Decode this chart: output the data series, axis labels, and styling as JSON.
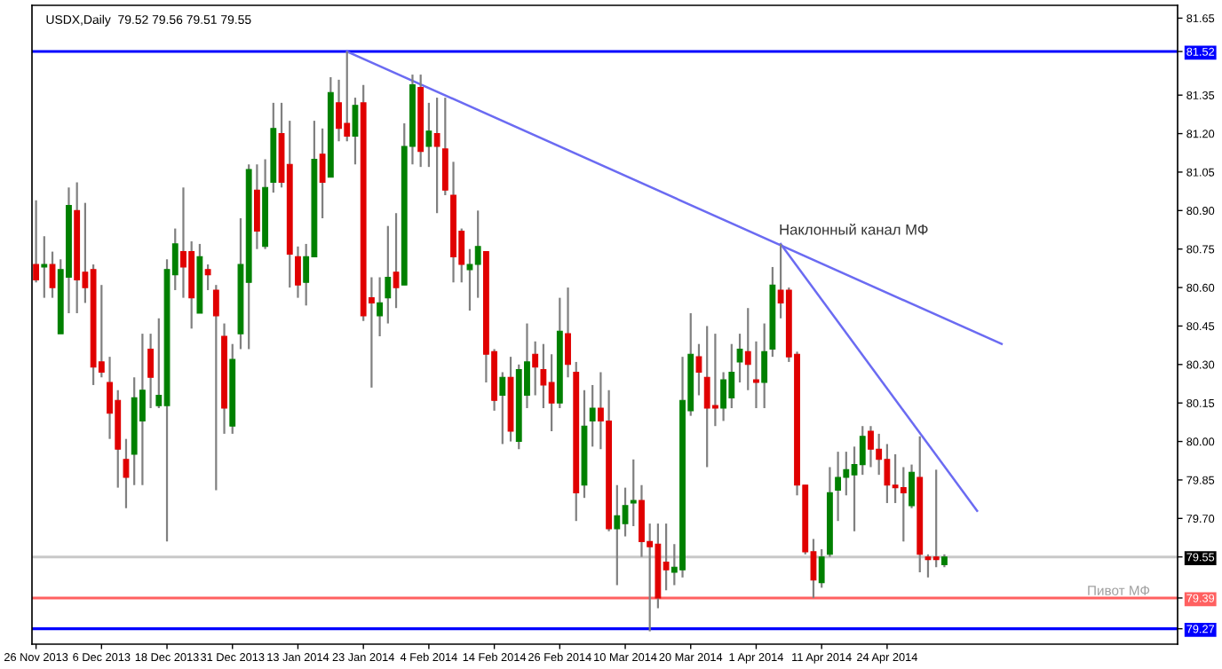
{
  "chart_data": {
    "type": "candlestick",
    "title": "USDX,Daily  79.52 79.56 79.51 79.55",
    "annotations": [
      "Наклонный канал МФ"
    ],
    "categories": [
      "26 Nov 2013",
      null,
      null,
      null,
      null,
      null,
      null,
      null,
      "6 Dec 2013",
      null,
      null,
      null,
      null,
      null,
      null,
      null,
      "18 Dec 2013",
      null,
      null,
      null,
      null,
      null,
      null,
      null,
      "31 Dec 2013",
      null,
      null,
      null,
      null,
      null,
      null,
      null,
      "13 Jan 2014",
      null,
      null,
      null,
      null,
      null,
      null,
      null,
      "23 Jan 2014",
      null,
      null,
      null,
      null,
      null,
      null,
      null,
      "4 Feb 2014",
      null,
      null,
      null,
      null,
      null,
      null,
      null,
      "14 Feb 2014",
      null,
      null,
      null,
      null,
      null,
      null,
      null,
      "26 Feb 2014",
      null,
      null,
      null,
      null,
      null,
      null,
      null,
      "10 Mar 2014",
      null,
      null,
      null,
      null,
      null,
      null,
      null,
      "20 Mar 2014",
      null,
      null,
      null,
      null,
      null,
      null,
      null,
      "1 Apr 2014",
      null,
      null,
      null,
      null,
      null,
      null,
      null,
      "11 Apr 2014",
      null,
      null,
      null,
      null,
      null,
      null,
      null,
      "24 Apr 2014",
      null,
      null,
      null,
      null,
      null,
      null,
      null,
      null,
      null,
      null,
      null,
      null,
      null,
      null,
      null,
      null,
      null,
      null,
      null,
      null,
      null,
      null,
      null,
      null,
      null,
      null,
      null,
      null,
      null,
      null,
      null,
      null,
      null,
      null,
      null
    ],
    "colors": [
      "#e00000",
      "#008000",
      "#e00000",
      "#008000",
      "#008000",
      "#e00000",
      "#e00000",
      "#e00000",
      "#e00000",
      "#e00000",
      "#e00000",
      "#e00000",
      "#008000",
      "#008000",
      "#e00000",
      "#008000",
      "#008000",
      "#008000",
      "#e00000",
      "#e00000",
      "#008000",
      "#e00000",
      "#e00000",
      "#e00000",
      "#008000",
      "#008000",
      "#008000",
      "#e00000",
      "#008000",
      "#008000",
      "#e00000",
      "#e00000",
      "#e00000",
      "#008000",
      "#008000",
      "#e00000",
      "#008000",
      "#e00000",
      "#e00000",
      "#008000",
      "#e00000",
      "#e00000",
      "#008000",
      "#008000",
      "#e00000",
      "#008000",
      "#008000",
      "#e00000",
      "#008000",
      "#e00000",
      "#e00000",
      "#e00000",
      "#e00000",
      "#008000",
      "#008000",
      "#e00000",
      "#e00000",
      "#008000",
      "#e00000",
      "#008000",
      "#008000",
      "#e00000",
      "#e00000",
      "#e00000",
      "#008000",
      "#e00000",
      "#e00000",
      "#008000",
      "#008000",
      "#e00000",
      "#e00000",
      "#008000",
      "#008000",
      "#008000",
      "#e00000",
      "#e00000",
      "#e00000",
      "#e00000",
      "#008000",
      "#008000",
      "#008000",
      "#e00000",
      "#e00000",
      "#e00000",
      "#008000",
      "#008000",
      "#008000",
      "#e00000",
      "#e00000",
      "#008000",
      "#008000",
      "#e00000",
      "#e00000",
      "#e00000",
      "#e00000",
      "#e00000",
      "#008000",
      "#008000",
      "#008000",
      "#008000",
      "#008000",
      "#008000",
      "#e00000",
      "#e00000",
      "#e00000",
      "#e00000",
      "#e00000",
      "#008000",
      "#e00000",
      "#e00000",
      "#e00000",
      "#008000",
      null,
      null,
      null,
      null,
      null,
      null,
      null,
      null,
      null,
      null,
      null,
      null,
      null,
      null,
      null,
      null,
      null,
      null,
      null,
      null,
      null,
      null,
      null,
      null,
      null,
      null,
      null,
      null
    ],
    "ohlc": [
      [
        80.69,
        80.94,
        80.62,
        80.63
      ],
      [
        80.68,
        80.8,
        80.56,
        80.69
      ],
      [
        80.69,
        80.74,
        80.56,
        80.6
      ],
      [
        80.42,
        80.71,
        80.42,
        80.67
      ],
      [
        80.64,
        80.99,
        80.5,
        80.92
      ],
      [
        80.9,
        81.01,
        80.5,
        80.63
      ],
      [
        80.66,
        80.93,
        80.54,
        80.6
      ],
      [
        80.67,
        80.69,
        80.22,
        80.29
      ],
      [
        80.31,
        80.61,
        80.25,
        80.27
      ],
      [
        80.23,
        80.33,
        80.01,
        80.11
      ],
      [
        80.16,
        80.2,
        79.82,
        79.97
      ],
      [
        79.93,
        80.01,
        79.74,
        79.86
      ],
      [
        79.95,
        80.25,
        79.83,
        80.17
      ],
      [
        80.08,
        80.42,
        79.83,
        80.2
      ],
      [
        80.36,
        80.42,
        80.13,
        80.25
      ],
      [
        80.14,
        80.48,
        80.13,
        80.18
      ],
      [
        80.14,
        80.71,
        79.61,
        80.67
      ],
      [
        80.65,
        80.83,
        80.59,
        80.77
      ],
      [
        80.74,
        80.99,
        80.56,
        80.68
      ],
      [
        80.74,
        80.78,
        80.44,
        80.56
      ],
      [
        80.5,
        80.77,
        80.5,
        80.72
      ],
      [
        80.67,
        80.69,
        80.59,
        80.65
      ],
      [
        80.59,
        80.61,
        79.81,
        80.49
      ],
      [
        80.41,
        80.46,
        80.03,
        80.13
      ],
      [
        80.06,
        80.38,
        80.03,
        80.32
      ],
      [
        80.42,
        80.87,
        80.36,
        80.69
      ],
      [
        80.62,
        81.08,
        80.36,
        81.06
      ],
      [
        80.98,
        81.08,
        80.75,
        80.82
      ],
      [
        80.76,
        81.1,
        80.75,
        80.99
      ],
      [
        81.01,
        81.32,
        80.97,
        81.22
      ],
      [
        81.2,
        81.32,
        80.99,
        81.01
      ],
      [
        81.08,
        81.25,
        80.6,
        80.73
      ],
      [
        80.72,
        80.76,
        80.56,
        80.61
      ],
      [
        80.62,
        80.77,
        80.53,
        80.72
      ],
      [
        80.72,
        81.25,
        80.72,
        81.1
      ],
      [
        81.12,
        81.22,
        80.87,
        81.01
      ],
      [
        81.03,
        81.42,
        81.03,
        81.36
      ],
      [
        81.32,
        81.41,
        81.17,
        81.22
      ],
      [
        81.24,
        81.52,
        81.17,
        81.19
      ],
      [
        81.19,
        81.34,
        81.08,
        81.31
      ],
      [
        81.32,
        81.39,
        80.47,
        80.49
      ],
      [
        80.56,
        80.64,
        80.21,
        80.54
      ],
      [
        80.49,
        80.64,
        80.41,
        80.54
      ],
      [
        80.56,
        80.84,
        80.46,
        80.64
      ],
      [
        80.66,
        80.89,
        80.52,
        80.6
      ],
      [
        80.61,
        81.24,
        80.61,
        81.15
      ],
      [
        81.15,
        81.43,
        81.08,
        81.39
      ],
      [
        81.38,
        81.43,
        81.07,
        81.13
      ],
      [
        81.15,
        81.32,
        81.07,
        81.21
      ],
      [
        81.2,
        81.34,
        80.89,
        81.15
      ],
      [
        81.14,
        81.34,
        80.96,
        80.98
      ],
      [
        80.96,
        81.09,
        80.62,
        80.72
      ],
      [
        80.82,
        80.83,
        80.62,
        80.69
      ],
      [
        80.67,
        80.75,
        80.51,
        80.69
      ],
      [
        80.69,
        80.9,
        80.56,
        80.76
      ],
      [
        80.74,
        80.74,
        80.23,
        80.34
      ],
      [
        80.35,
        80.36,
        80.12,
        80.16
      ],
      [
        80.18,
        80.27,
        79.99,
        80.25
      ],
      [
        80.25,
        80.33,
        80.0,
        80.04
      ],
      [
        80.0,
        80.3,
        79.97,
        80.28
      ],
      [
        80.18,
        80.46,
        80.13,
        80.31
      ],
      [
        80.34,
        80.39,
        80.18,
        80.29
      ],
      [
        80.28,
        80.38,
        80.13,
        80.22
      ],
      [
        80.23,
        80.34,
        80.04,
        80.15
      ],
      [
        80.15,
        80.56,
        80.13,
        80.43
      ],
      [
        80.42,
        80.6,
        80.25,
        80.3
      ],
      [
        80.27,
        80.31,
        79.69,
        79.8
      ],
      [
        79.83,
        80.2,
        79.78,
        80.06
      ],
      [
        80.08,
        80.22,
        79.98,
        80.13
      ],
      [
        80.13,
        80.27,
        79.97,
        80.08
      ],
      [
        80.08,
        80.2,
        79.65,
        79.66
      ],
      [
        79.66,
        79.83,
        79.44,
        79.71
      ],
      [
        79.68,
        79.82,
        79.63,
        79.75
      ],
      [
        79.76,
        79.93,
        79.67,
        79.77
      ],
      [
        79.77,
        79.83,
        79.55,
        79.61
      ],
      [
        79.61,
        79.68,
        79.26,
        79.59
      ],
      [
        79.6,
        79.68,
        79.35,
        79.39
      ],
      [
        79.53,
        79.68,
        79.42,
        79.5
      ],
      [
        79.49,
        79.6,
        79.44,
        79.51
      ],
      [
        79.5,
        80.33,
        79.47,
        80.16
      ],
      [
        80.12,
        80.5,
        80.1,
        80.34
      ],
      [
        80.33,
        80.38,
        80.18,
        80.27
      ],
      [
        80.25,
        80.45,
        79.9,
        80.13
      ],
      [
        80.14,
        80.42,
        80.06,
        80.13
      ],
      [
        80.13,
        80.27,
        80.08,
        80.24
      ],
      [
        80.17,
        80.38,
        80.13,
        80.27
      ],
      [
        80.31,
        80.42,
        80.23,
        80.36
      ],
      [
        80.35,
        80.52,
        80.2,
        80.3
      ],
      [
        80.24,
        80.39,
        80.13,
        80.23
      ],
      [
        80.23,
        80.46,
        80.13,
        80.35
      ],
      [
        80.36,
        80.68,
        80.33,
        80.61
      ],
      [
        80.59,
        80.77,
        80.48,
        80.54
      ],
      [
        80.59,
        80.6,
        80.31,
        80.33
      ],
      [
        80.34,
        80.35,
        79.79,
        79.83
      ],
      [
        79.83,
        79.83,
        79.56,
        79.57
      ],
      [
        79.57,
        79.62,
        79.39,
        79.46
      ],
      [
        79.45,
        79.58,
        79.43,
        79.55
      ],
      [
        79.56,
        79.9,
        79.55,
        79.8
      ],
      [
        79.81,
        79.96,
        79.69,
        79.86
      ],
      [
        79.86,
        79.96,
        79.79,
        79.89
      ],
      [
        79.87,
        79.98,
        79.65,
        79.91
      ],
      [
        79.91,
        80.06,
        79.87,
        80.02
      ],
      [
        80.04,
        80.06,
        79.9,
        79.97
      ],
      [
        79.97,
        80.03,
        79.87,
        79.93
      ],
      [
        79.93,
        79.99,
        79.76,
        79.83
      ],
      [
        79.83,
        79.95,
        79.76,
        79.82
      ],
      [
        79.82,
        79.9,
        79.61,
        79.8
      ],
      [
        79.75,
        79.91,
        79.74,
        79.88
      ],
      [
        79.86,
        80.02,
        79.49,
        79.56
      ],
      [
        79.55,
        79.56,
        79.47,
        79.54
      ],
      [
        79.55,
        79.89,
        79.51,
        79.54
      ],
      [
        79.52,
        79.56,
        79.51,
        79.55
      ],
      null,
      null,
      null,
      null,
      null,
      null,
      null,
      null,
      null,
      null,
      null,
      null,
      null,
      null,
      null,
      null,
      null,
      null,
      null,
      null,
      null,
      null,
      null,
      null,
      null,
      null,
      null,
      null
    ],
    "series": [
      {
        "type": "line",
        "color": "#6b6bf2",
        "values": [
          null,
          null,
          null,
          null,
          null,
          null,
          null,
          null,
          null,
          null,
          null,
          null,
          null,
          null,
          null,
          null,
          null,
          null,
          null,
          null,
          null,
          null,
          null,
          null,
          null,
          null,
          null,
          null,
          null,
          null,
          null,
          null,
          null,
          null,
          null,
          null,
          null,
          null,
          81.52,
          null,
          null,
          null,
          null,
          null,
          null,
          null,
          null,
          null,
          null,
          null,
          null,
          null,
          null,
          null,
          null,
          null,
          null,
          null,
          null,
          null,
          null,
          null,
          null,
          null,
          null,
          null,
          null,
          null,
          null,
          null,
          null,
          null,
          null,
          null,
          null,
          null,
          null,
          null,
          null,
          null,
          null,
          null,
          null,
          null,
          null,
          null,
          null,
          null,
          null,
          null,
          null,
          null,
          null,
          null,
          null,
          null,
          null,
          null,
          null,
          null,
          null,
          null,
          null,
          null,
          null,
          null,
          null,
          null,
          null,
          null,
          null,
          null,
          null,
          null,
          null,
          null,
          null,
          null,
          80.38,
          null,
          null,
          null,
          null,
          null,
          null,
          null,
          null,
          null,
          null,
          null,
          null,
          null,
          null,
          null,
          null,
          null,
          null,
          null,
          null,
          null
        ]
      },
      {
        "type": "line",
        "color": "#6b6bf2",
        "values": [
          null,
          null,
          null,
          null,
          null,
          null,
          null,
          null,
          null,
          null,
          null,
          null,
          null,
          null,
          null,
          null,
          null,
          null,
          null,
          null,
          null,
          null,
          null,
          null,
          null,
          null,
          null,
          null,
          null,
          null,
          null,
          null,
          null,
          null,
          null,
          null,
          null,
          null,
          null,
          null,
          null,
          null,
          null,
          null,
          null,
          null,
          null,
          null,
          null,
          null,
          null,
          null,
          null,
          null,
          null,
          null,
          null,
          null,
          null,
          null,
          null,
          null,
          null,
          null,
          null,
          null,
          null,
          null,
          null,
          null,
          null,
          null,
          null,
          null,
          null,
          null,
          null,
          null,
          null,
          null,
          null,
          null,
          null,
          null,
          null,
          null,
          null,
          null,
          null,
          null,
          null,
          80.77,
          null,
          null,
          null,
          null,
          null,
          null,
          null,
          null,
          null,
          null,
          null,
          null,
          null,
          null,
          null,
          null,
          null,
          null,
          null,
          null,
          null,
          null,
          null,
          79.73,
          null,
          null,
          null,
          null,
          null,
          null,
          null,
          null,
          null,
          null,
          null,
          null,
          null,
          null,
          null,
          null,
          null,
          null,
          null,
          null,
          null,
          null,
          null,
          null
        ]
      }
    ],
    "ylim": [
      79.21,
      81.7
    ],
    "yticks": [
      {
        "value": 79.27,
        "label": "79.27"
      },
      {
        "value": 79.39,
        "label": "79.39"
      },
      {
        "value": 79.55,
        "label": "79.55"
      },
      {
        "value": 79.7,
        "label": "79.70"
      },
      79.85,
      {
        "value": 80.0,
        "label": "80.00"
      },
      80.15,
      {
        "value": 80.3,
        "label": "80.30"
      },
      80.45,
      {
        "value": 80.6,
        "label": "80.60"
      },
      80.75,
      {
        "value": 80.9,
        "label": "80.90"
      },
      81.05,
      {
        "value": 81.2,
        "label": "81.20"
      },
      81.35,
      {
        "value": 81.52,
        "label": "81.52"
      },
      81.65
    ],
    "ref_lines": [
      {
        "axis": "y",
        "value": 81.52,
        "color": "#0000ff"
      },
      {
        "axis": "y",
        "value": 79.55,
        "color": "#c8c8c8"
      },
      {
        "axis": "y",
        "value": 79.39,
        "color": "#ff6060",
        "label": "Пивот МФ"
      },
      {
        "axis": "y",
        "value": 79.27,
        "color": "#0000ff"
      }
    ],
    "grid": false,
    "legend": false
  }
}
